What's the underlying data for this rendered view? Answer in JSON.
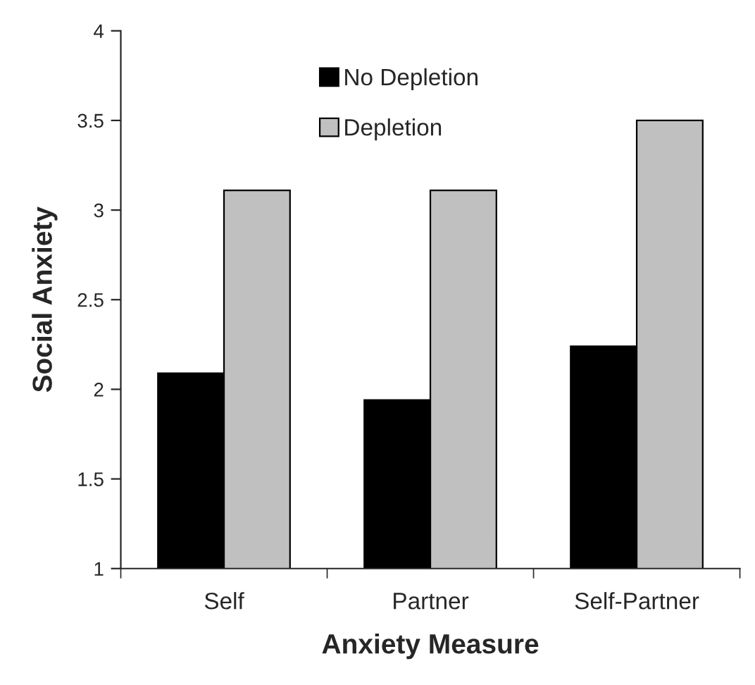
{
  "chart_data": {
    "type": "bar",
    "xlabel": "Anxiety Measure",
    "ylabel": "Social Anxiety",
    "categories": [
      "Self",
      "Partner",
      "Self-Partner"
    ],
    "series": [
      {
        "name": "No Depletion",
        "color": "#000000",
        "values": [
          2.09,
          1.94,
          2.24
        ]
      },
      {
        "name": "Depletion",
        "color": "#c0c0c0",
        "values": [
          3.11,
          3.11,
          3.5
        ]
      }
    ],
    "ylim": [
      1,
      4
    ],
    "yticks": [
      1,
      1.5,
      2,
      2.5,
      3,
      3.5,
      4
    ],
    "grid": false,
    "legend": "top"
  }
}
